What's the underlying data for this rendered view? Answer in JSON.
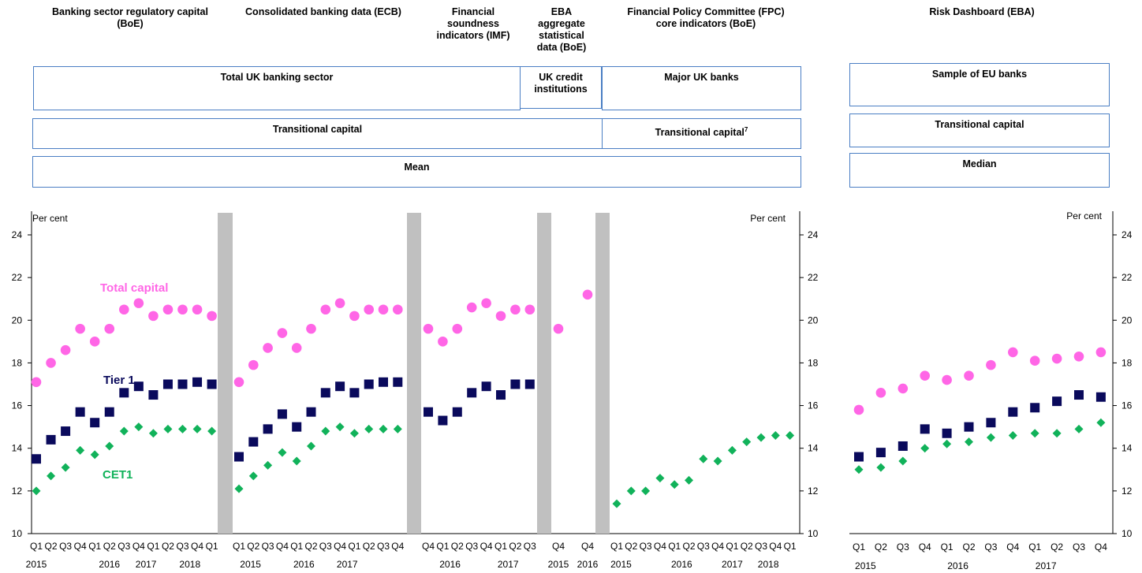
{
  "colors": {
    "total": "#ff66e6",
    "tier1": "#0a0a5c",
    "cet1": "#11b25a",
    "box_border": "#4a7ec4",
    "separator": "#c0c0c0"
  },
  "sources": [
    {
      "id": "boe_reg",
      "text": "Banking sector regulatory capital\n(BoE)"
    },
    {
      "id": "ecb",
      "text": "Consolidated banking data (ECB)"
    },
    {
      "id": "imf",
      "text": "Financial\nsoundness\nindicators (IMF)"
    },
    {
      "id": "eba_agg",
      "text": "EBA\naggregate\nstatistical\ndata (BoE)"
    },
    {
      "id": "fpc",
      "text": "Financial Policy Committee (FPC)\ncore indicators (BoE)"
    },
    {
      "id": "eba_rd",
      "text": "Risk Dashboard  (EBA)"
    }
  ],
  "boxes": {
    "total_uk": "Total UK banking sector",
    "uk_credit": "UK credit\ninstitutions",
    "major_uk": "Major UK banks",
    "eu_sample": "Sample of EU banks",
    "transitional_left": "Transitional capital",
    "transitional_fpc": "Transitional capital",
    "transitional_fpc_note": "7",
    "transitional_eu": "Transitional capital",
    "mean": "Mean",
    "median": "Median"
  },
  "chart_data": [
    {
      "type": "scatter",
      "unit_label": "Per cent",
      "ylim": [
        10,
        24
      ],
      "yticks": [
        10,
        12,
        14,
        16,
        18,
        20,
        22,
        24
      ],
      "series_labels": {
        "total": "Total capital",
        "tier1": "Tier 1",
        "cet1": "CET1"
      },
      "panels": [
        {
          "id": "boe_reg",
          "quarters": [
            "Q1",
            "Q2",
            "Q3",
            "Q4",
            "Q1",
            "Q2",
            "Q3",
            "Q4",
            "Q1",
            "Q2",
            "Q3",
            "Q4",
            "Q1"
          ],
          "years": [
            {
              "label": "2015",
              "at": 0
            },
            {
              "label": "2016",
              "at": 5
            },
            {
              "label": "2017",
              "at": 7.5
            },
            {
              "label": "2018",
              "at": 10.5
            }
          ],
          "total": [
            17.1,
            18.0,
            18.6,
            19.6,
            19.0,
            19.6,
            20.5,
            20.8,
            20.2,
            20.5,
            20.5,
            20.5,
            20.2
          ],
          "tier1": [
            13.5,
            14.4,
            14.8,
            15.7,
            15.2,
            15.7,
            16.6,
            16.9,
            16.5,
            17.0,
            17.0,
            17.1,
            17.0
          ],
          "cet1": [
            12.0,
            12.7,
            13.1,
            13.9,
            13.7,
            14.1,
            14.8,
            15.0,
            14.7,
            14.9,
            14.9,
            14.9,
            14.8
          ]
        },
        {
          "id": "ecb",
          "quarters": [
            "Q1",
            "Q2",
            "Q3",
            "Q4",
            "Q1",
            "Q2",
            "Q3",
            "Q4",
            "Q1",
            "Q2",
            "Q3",
            "Q4"
          ],
          "years": [
            {
              "label": "2015",
              "at": 0.8
            },
            {
              "label": "2016",
              "at": 4.5
            },
            {
              "label": "2017",
              "at": 7.5
            }
          ],
          "total": [
            17.1,
            17.9,
            18.7,
            19.4,
            18.7,
            19.6,
            20.5,
            20.8,
            20.2,
            20.5,
            20.5,
            20.5
          ],
          "tier1": [
            13.6,
            14.3,
            14.9,
            15.6,
            15.0,
            15.7,
            16.6,
            16.9,
            16.6,
            17.0,
            17.1,
            17.1
          ],
          "cet1": [
            12.1,
            12.7,
            13.2,
            13.8,
            13.4,
            14.1,
            14.8,
            15.0,
            14.7,
            14.9,
            14.9,
            14.9
          ]
        },
        {
          "id": "imf",
          "quarters": [
            "Q4",
            "Q1",
            "Q2",
            "Q3",
            "Q4",
            "Q1",
            "Q2",
            "Q3"
          ],
          "years": [
            {
              "label": "2016",
              "at": 1.5
            },
            {
              "label": "2017",
              "at": 5.5
            }
          ],
          "total": [
            19.6,
            19.0,
            19.6,
            20.6,
            20.8,
            20.2,
            20.5,
            20.5
          ],
          "tier1": [
            15.7,
            15.3,
            15.7,
            16.6,
            16.9,
            16.5,
            17.0,
            17.0
          ]
        },
        {
          "id": "eba_agg",
          "quarters": [
            "Q4",
            "Q4"
          ],
          "years": [
            {
              "label": "2015",
              "at": 0
            },
            {
              "label": "2016",
              "at": 1
            }
          ],
          "total": [
            19.6,
            21.2
          ]
        },
        {
          "id": "fpc",
          "quarters": [
            "Q1",
            "Q2",
            "Q3",
            "Q4",
            "Q1",
            "Q2",
            "Q3",
            "Q4",
            "Q1",
            "Q2",
            "Q3",
            "Q4",
            "Q1"
          ],
          "years": [
            {
              "label": "2015",
              "at": 0.3
            },
            {
              "label": "2016",
              "at": 4.5
            },
            {
              "label": "2017",
              "at": 8
            },
            {
              "label": "2018",
              "at": 10.5
            }
          ],
          "cet1": [
            11.4,
            12.0,
            12.0,
            12.6,
            12.3,
            12.5,
            13.5,
            13.4,
            13.9,
            14.3,
            14.5,
            14.6,
            14.6
          ]
        }
      ]
    },
    {
      "type": "scatter",
      "id": "eba_rd",
      "unit_label": "Per cent",
      "ylim": [
        10,
        24
      ],
      "yticks": [
        10,
        12,
        14,
        16,
        18,
        20,
        22,
        24
      ],
      "quarters": [
        "Q1",
        "Q2",
        "Q3",
        "Q4",
        "Q1",
        "Q2",
        "Q3",
        "Q4",
        "Q1",
        "Q2",
        "Q3",
        "Q4"
      ],
      "years": [
        {
          "label": "2015",
          "at": 0.3
        },
        {
          "label": "2016",
          "at": 4.5
        },
        {
          "label": "2017",
          "at": 8.5
        }
      ],
      "total": [
        15.8,
        16.6,
        16.8,
        17.4,
        17.2,
        17.4,
        17.9,
        18.5,
        18.1,
        18.2,
        18.3,
        18.5
      ],
      "tier1": [
        13.6,
        13.8,
        14.1,
        14.9,
        14.7,
        15.0,
        15.2,
        15.7,
        15.9,
        16.2,
        16.5,
        16.4
      ],
      "cet1": [
        13.0,
        13.1,
        13.4,
        14.0,
        14.2,
        14.3,
        14.5,
        14.6,
        14.7,
        14.7,
        14.9,
        15.2
      ]
    }
  ]
}
